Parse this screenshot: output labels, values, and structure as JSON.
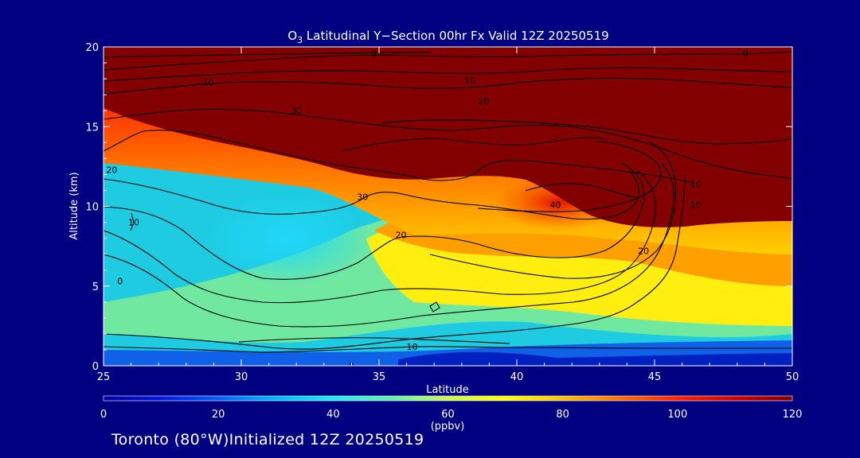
{
  "chart_data": {
    "type": "heatmap",
    "title_species": "O",
    "title_subscript": "3",
    "title_rest": " Latitudinal Y−Section 00hr  Fx Valid 12Z 20250519",
    "xlabel": "Latitude",
    "ylabel": "Altitude (km)",
    "xlim": [
      25,
      50
    ],
    "ylim": [
      0,
      20
    ],
    "xticks": [
      25,
      30,
      35,
      40,
      45,
      50
    ],
    "yticks": [
      0,
      5,
      10,
      15,
      20
    ],
    "colorbar": {
      "label": "(ppbv)",
      "range": [
        0,
        120
      ],
      "ticks": [
        0,
        20,
        40,
        60,
        80,
        100,
        120
      ],
      "colors": [
        "#0000a0",
        "#0018e0",
        "#0060ff",
        "#00b8ff",
        "#20e8f0",
        "#60f0b0",
        "#c8f850",
        "#ffff00",
        "#ffc000",
        "#ff7000",
        "#ff2000",
        "#d00000",
        "#800000"
      ]
    },
    "contour_labels": [
      {
        "text": "0",
        "lat": 34.0,
        "alt": 0.0
      },
      {
        "text": "10",
        "lat": 36.2,
        "alt": 1.2
      },
      {
        "text": "0",
        "lat": 25.6,
        "alt": 5.3
      },
      {
        "text": "10",
        "lat": 26.1,
        "alt": 9.0
      },
      {
        "text": "20",
        "lat": 25.3,
        "alt": 12.3
      },
      {
        "text": "20",
        "lat": 35.8,
        "alt": 8.2
      },
      {
        "text": "30",
        "lat": 34.4,
        "alt": 10.6
      },
      {
        "text": "40",
        "lat": 41.4,
        "alt": 10.1
      },
      {
        "text": "20",
        "lat": 44.6,
        "alt": 7.2
      },
      {
        "text": "10",
        "lat": 46.5,
        "alt": 10.1
      },
      {
        "text": "10",
        "lat": 46.5,
        "alt": 11.4
      },
      {
        "text": "30",
        "lat": 32.0,
        "alt": 16.0
      },
      {
        "text": "20",
        "lat": 38.8,
        "alt": 16.6
      },
      {
        "text": "10",
        "lat": 28.8,
        "alt": 17.8
      },
      {
        "text": "10",
        "lat": 38.3,
        "alt": 17.9
      },
      {
        "text": "0",
        "lat": 34.8,
        "alt": 19.6
      },
      {
        "text": "0",
        "lat": 48.3,
        "alt": 19.6
      }
    ]
  },
  "footer": {
    "text": "Toronto (80°W)Initialized 12Z 20250519"
  }
}
